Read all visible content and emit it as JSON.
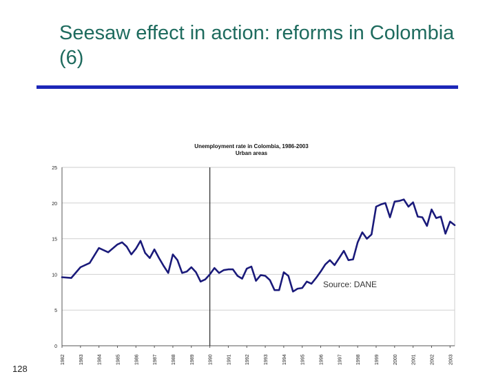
{
  "slide": {
    "title": "Seesaw effect in action: reforms in Colombia (6)",
    "source": "Source: DANE",
    "page_number": "128"
  },
  "colors": {
    "title": "#1e6b5e",
    "rule": "#1c27b8",
    "series": "#1a1a7a",
    "gridline": "#d0d0d0",
    "marker": "#333333"
  },
  "chart_data": {
    "type": "line",
    "title": "Unemployment rate in Colombia, 1986-2003",
    "subtitle": "Urban areas",
    "xlabel": "",
    "ylabel": "",
    "ylim": [
      0,
      25
    ],
    "yticks": [
      0,
      5,
      10,
      15,
      20,
      25
    ],
    "xlim": [
      1982,
      2003.25
    ],
    "xticks": [
      "1982",
      "1983",
      "1984",
      "1985",
      "1986",
      "1987",
      "1988",
      "1989",
      "1990",
      "1991",
      "1992",
      "1993",
      "1994",
      "1995",
      "1996",
      "1997",
      "1998",
      "1999",
      "2000",
      "2001",
      "2002",
      "2003"
    ],
    "grid": "horizontal",
    "legend": "none",
    "marker_line_x": 1990,
    "series": [
      {
        "x": [
          1982.0,
          1982.5,
          1983.0,
          1983.5,
          1984.0,
          1984.5,
          1985.0,
          1985.25,
          1985.5,
          1985.75,
          1986.0,
          1986.25,
          1986.5,
          1986.75,
          1987.0,
          1987.25,
          1987.5,
          1987.75,
          1988.0,
          1988.25,
          1988.5,
          1988.75,
          1989.0,
          1989.25,
          1989.5,
          1989.75,
          1990.0,
          1990.25,
          1990.5,
          1990.75,
          1991.0,
          1991.25,
          1991.5,
          1991.75,
          1992.0,
          1992.25,
          1992.5,
          1992.75,
          1993.0,
          1993.25,
          1993.5,
          1993.75,
          1994.0,
          1994.25,
          1994.5,
          1994.75,
          1995.0,
          1995.25,
          1995.5,
          1995.75,
          1996.0,
          1996.25,
          1996.5,
          1996.75,
          1997.0,
          1997.25,
          1997.5,
          1997.75,
          1998.0,
          1998.25,
          1998.5,
          1998.75,
          1999.0,
          1999.25,
          1999.5,
          1999.75,
          2000.0,
          2000.25,
          2000.5,
          2000.75,
          2001.0,
          2001.25,
          2001.5,
          2001.75,
          2002.0,
          2002.25,
          2002.5,
          2002.75,
          2003.0,
          2003.25
        ],
        "values": [
          9.6,
          9.5,
          11.0,
          11.6,
          13.7,
          13.1,
          14.2,
          14.5,
          13.9,
          12.8,
          13.6,
          14.7,
          13.0,
          12.3,
          13.5,
          12.3,
          11.2,
          10.2,
          12.8,
          12.0,
          10.2,
          10.4,
          11.0,
          10.3,
          9.0,
          9.3,
          10.0,
          10.9,
          10.2,
          10.6,
          10.7,
          10.7,
          9.8,
          9.4,
          10.8,
          11.1,
          9.1,
          9.9,
          9.8,
          9.2,
          7.8,
          7.8,
          10.3,
          9.8,
          7.6,
          8.0,
          8.1,
          9.0,
          8.7,
          9.5,
          10.4,
          11.4,
          12.0,
          11.3,
          12.3,
          13.3,
          12.0,
          12.1,
          14.5,
          15.9,
          15.0,
          15.6,
          19.5,
          19.8,
          20.0,
          18.0,
          20.2,
          20.3,
          20.5,
          19.5,
          20.1,
          18.1,
          18.0,
          16.8,
          19.1,
          17.9,
          18.1,
          15.7,
          17.4,
          16.9
        ]
      }
    ]
  }
}
